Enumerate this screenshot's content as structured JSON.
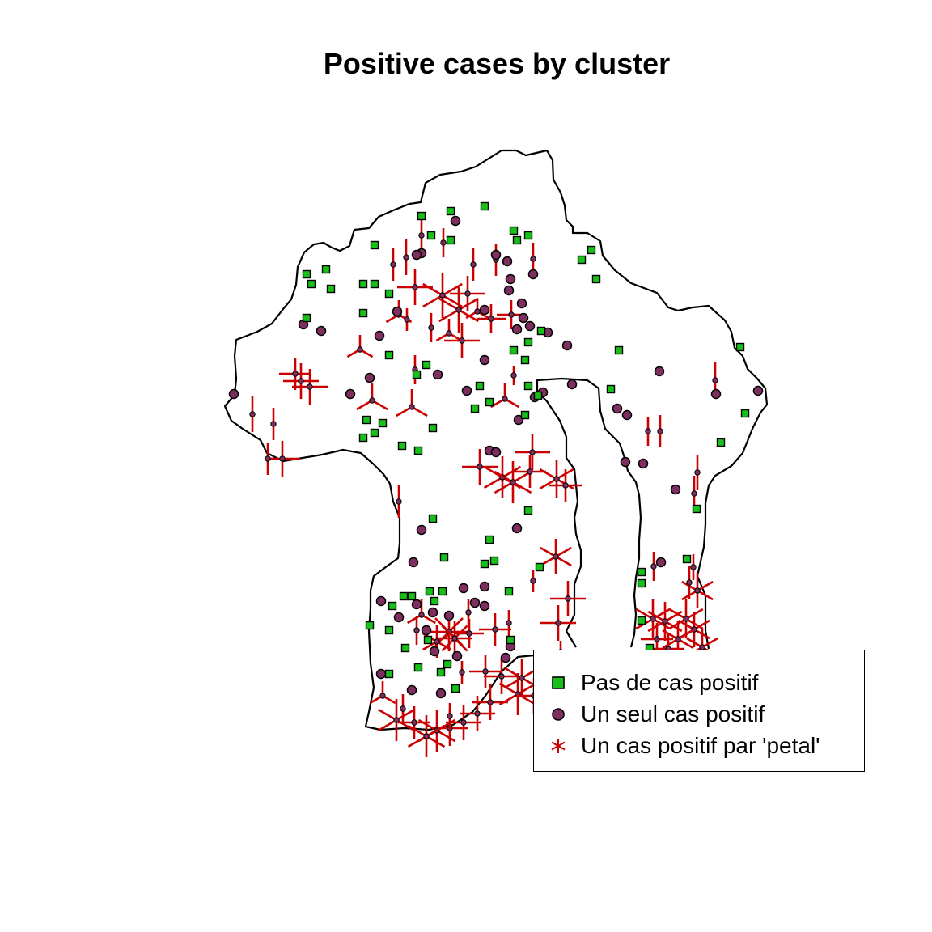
{
  "title": "Positive cases by cluster",
  "legend": [
    {
      "key": "none",
      "label": "Pas de cas positif",
      "symbol": "green-square"
    },
    {
      "key": "single",
      "label": "Un seul cas positif",
      "symbol": "purple-circle"
    },
    {
      "key": "petal",
      "label": "Un cas positif par 'petal'",
      "symbol": "red-asterisk"
    }
  ],
  "colors": {
    "none": "#17c117",
    "single": "#7f2f5f",
    "petal": "#cc0000",
    "outline": "#000000"
  }
}
